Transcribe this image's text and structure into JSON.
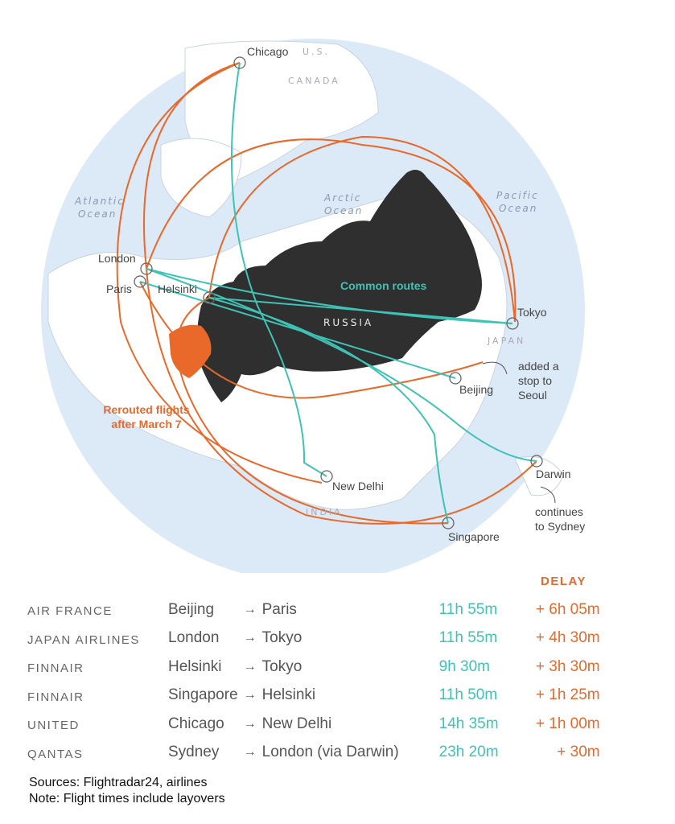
{
  "map": {
    "cities": [
      "Chicago",
      "London",
      "Paris",
      "Helsinki",
      "Tokyo",
      "Beijing",
      "Darwin",
      "New Delhi",
      "Singapore"
    ],
    "countries": [
      "U.S.",
      "CANADA",
      "RUSSIA",
      "JAPAN",
      "INDIA"
    ],
    "oceans": {
      "atlantic": [
        "Atlantic",
        "Ocean"
      ],
      "arctic": [
        "Arctic",
        "Ocean"
      ],
      "pacific": [
        "Pacific",
        "Ocean"
      ]
    },
    "annotations": {
      "common_routes": "Common routes",
      "rerouted": [
        "Rerouted flights",
        "after March 7"
      ],
      "seoul": [
        "added a",
        "stop to",
        "Seoul"
      ],
      "sydney": [
        "continues",
        "to Sydney"
      ]
    },
    "colors": {
      "common": "#3ec3b6",
      "rerouted": "#e8692a",
      "russia": "#2f2f2f",
      "ukraine": "#e8692a",
      "ocean": "#dce9f6"
    }
  },
  "table": {
    "delay_header": "DELAY",
    "rows": [
      {
        "airline": "AIR FRANCE",
        "from": "Beijing",
        "arrow": "→",
        "to": "Paris",
        "time": "11h 55m",
        "delay": "+ 6h 05m"
      },
      {
        "airline": "JAPAN AIRLINES",
        "from": "London",
        "arrow": "→",
        "to": "Tokyo",
        "time": "11h 55m",
        "delay": "+ 4h 30m"
      },
      {
        "airline": "FINNAIR",
        "from": "Helsinki",
        "arrow": "→",
        "to": "Tokyo",
        "time": "9h 30m",
        "delay": "+ 3h 30m"
      },
      {
        "airline": "FINNAIR",
        "from": "Singapore",
        "arrow": "→",
        "to": "Helsinki",
        "time": "11h 50m",
        "delay": "+ 1h 25m"
      },
      {
        "airline": "UNITED",
        "from": "Chicago",
        "arrow": "→",
        "to": "New Delhi",
        "time": "14h 35m",
        "delay": "+ 1h 00m"
      },
      {
        "airline": "QANTAS",
        "from": "Sydney",
        "arrow": "→",
        "to": "London (via Darwin)",
        "time": "23h 20m",
        "delay": "+ 30m"
      }
    ]
  },
  "notes": {
    "sources": "Sources: Flightradar24, airlines",
    "note": "Note: Flight times include layovers"
  }
}
